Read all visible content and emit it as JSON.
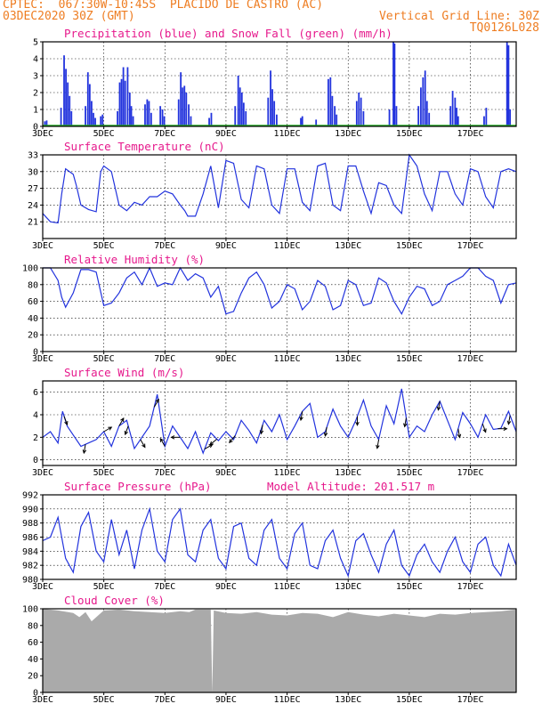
{
  "header": {
    "line1_left": "CPTEC:  067:30W-10:45S  PLACIDO DE CASTRO (AC)",
    "line2_left": "03DEC2020 30Z (GMT)",
    "line2_right": "Vertical Grid Line: 30Z",
    "line3_right": "TQ0126L028"
  },
  "colors": {
    "header": "#ee7d22",
    "panel_title": "#e6198c",
    "series": "#2233dd",
    "snow": "#22aa22",
    "cloud": "#aaaaaa"
  },
  "chart_data": [
    {
      "id": "precip",
      "type": "bar",
      "title": "Precipitation (blue) and Snow Fall (green) (mm/h)",
      "ylim": [
        0,
        5
      ],
      "yticks": [
        0,
        1,
        2,
        3,
        4,
        5
      ],
      "xlabels": [
        "3DEC",
        "5DEC",
        "7DEC",
        "9DEC",
        "11DEC",
        "13DEC",
        "15DEC",
        "17DEC"
      ],
      "xstart": 3.0,
      "xend": 18.5,
      "grid": true,
      "bars": [
        [
          3.07,
          0.3
        ],
        [
          3.13,
          0.35
        ],
        [
          3.6,
          1.1
        ],
        [
          3.7,
          4.2
        ],
        [
          3.76,
          3.4
        ],
        [
          3.82,
          2.6
        ],
        [
          3.88,
          1.8
        ],
        [
          3.94,
          0.9
        ],
        [
          4.4,
          1.2
        ],
        [
          4.48,
          3.2
        ],
        [
          4.54,
          2.5
        ],
        [
          4.6,
          1.5
        ],
        [
          4.66,
          0.8
        ],
        [
          4.72,
          0.5
        ],
        [
          4.9,
          0.6
        ],
        [
          4.96,
          0.7
        ],
        [
          5.45,
          0.9
        ],
        [
          5.52,
          2.6
        ],
        [
          5.58,
          2.8
        ],
        [
          5.64,
          3.5
        ],
        [
          5.7,
          2.7
        ],
        [
          5.78,
          3.5
        ],
        [
          5.85,
          2.0
        ],
        [
          5.9,
          1.2
        ],
        [
          5.96,
          0.6
        ],
        [
          6.35,
          1.3
        ],
        [
          6.42,
          1.6
        ],
        [
          6.48,
          1.5
        ],
        [
          6.55,
          0.8
        ],
        [
          6.85,
          1.2
        ],
        [
          6.92,
          1.0
        ],
        [
          6.98,
          0.6
        ],
        [
          7.45,
          1.6
        ],
        [
          7.52,
          3.2
        ],
        [
          7.58,
          2.3
        ],
        [
          7.64,
          2.4
        ],
        [
          7.7,
          2.0
        ],
        [
          7.78,
          1.3
        ],
        [
          7.85,
          0.6
        ],
        [
          8.45,
          0.5
        ],
        [
          8.52,
          0.8
        ],
        [
          9.3,
          1.2
        ],
        [
          9.4,
          3.0
        ],
        [
          9.46,
          2.3
        ],
        [
          9.52,
          2.0
        ],
        [
          9.58,
          1.4
        ],
        [
          9.65,
          0.9
        ],
        [
          10.38,
          1.7
        ],
        [
          10.46,
          3.3
        ],
        [
          10.52,
          2.2
        ],
        [
          10.58,
          1.5
        ],
        [
          10.66,
          0.7
        ],
        [
          11.45,
          0.5
        ],
        [
          11.5,
          0.6
        ],
        [
          11.95,
          0.4
        ],
        [
          12.35,
          2.8
        ],
        [
          12.42,
          2.9
        ],
        [
          12.48,
          1.8
        ],
        [
          12.56,
          1.2
        ],
        [
          12.62,
          0.7
        ],
        [
          13.28,
          1.5
        ],
        [
          13.35,
          2.0
        ],
        [
          13.42,
          1.7
        ],
        [
          13.5,
          0.9
        ],
        [
          14.35,
          1.0
        ],
        [
          14.48,
          5.0
        ],
        [
          14.52,
          4.9
        ],
        [
          14.58,
          1.2
        ],
        [
          15.3,
          1.2
        ],
        [
          15.38,
          2.3
        ],
        [
          15.45,
          2.9
        ],
        [
          15.52,
          3.3
        ],
        [
          15.58,
          1.5
        ],
        [
          15.65,
          0.8
        ],
        [
          16.35,
          1.2
        ],
        [
          16.42,
          2.1
        ],
        [
          16.5,
          1.7
        ],
        [
          16.55,
          1.1
        ],
        [
          16.6,
          0.6
        ],
        [
          17.45,
          0.6
        ],
        [
          17.52,
          1.1
        ],
        [
          18.2,
          5.0
        ],
        [
          18.25,
          4.8
        ],
        [
          18.3,
          1.0
        ]
      ]
    },
    {
      "id": "temp",
      "type": "line",
      "title": "Surface Temperature (nC)",
      "ylim": [
        18,
        33
      ],
      "yticks": [
        21,
        24,
        27,
        30,
        33
      ],
      "xlabels": [
        "3DEC",
        "5DEC",
        "7DEC",
        "9DEC",
        "11DEC",
        "13DEC",
        "15DEC",
        "17DEC"
      ],
      "xstart": 3.0,
      "xend": 18.5,
      "grid": true,
      "x": [
        3.0,
        3.25,
        3.5,
        3.62,
        3.75,
        4.0,
        4.1,
        4.25,
        4.5,
        4.75,
        4.9,
        5.0,
        5.25,
        5.5,
        5.75,
        6.0,
        6.25,
        6.5,
        6.75,
        7.0,
        7.25,
        7.5,
        7.65,
        7.75,
        8.0,
        8.25,
        8.5,
        8.75,
        9.0,
        9.25,
        9.5,
        9.75,
        10.0,
        10.25,
        10.5,
        10.75,
        11.0,
        11.25,
        11.5,
        11.75,
        12.0,
        12.25,
        12.5,
        12.75,
        13.0,
        13.25,
        13.5,
        13.75,
        14.0,
        14.25,
        14.5,
        14.75,
        15.0,
        15.25,
        15.5,
        15.75,
        16.0,
        16.25,
        16.5,
        16.75,
        17.0,
        17.25,
        17.5,
        17.75,
        18.0,
        18.25,
        18.5
      ],
      "y": [
        22.5,
        21.0,
        20.8,
        26.0,
        30.5,
        29.5,
        27.5,
        24.0,
        23.2,
        22.8,
        30.0,
        31.0,
        30.0,
        24.0,
        23.0,
        24.5,
        24.0,
        25.5,
        25.5,
        26.5,
        26.0,
        24.0,
        23.0,
        22.0,
        22.0,
        26.0,
        31.0,
        23.5,
        32.0,
        31.5,
        25.0,
        23.5,
        31.0,
        30.5,
        24.0,
        22.5,
        30.5,
        30.5,
        24.5,
        23.0,
        31.0,
        31.5,
        24.0,
        23.0,
        31.0,
        31.0,
        26.5,
        22.5,
        28.0,
        27.5,
        24.0,
        22.5,
        33.0,
        31.0,
        26.0,
        23.0,
        30.0,
        30.0,
        26.0,
        24.0,
        30.5,
        30.0,
        25.5,
        23.5,
        30.0,
        30.5,
        30.0
      ]
    },
    {
      "id": "rh",
      "type": "line",
      "title": "Relative Humidity (%)",
      "ylim": [
        0,
        100
      ],
      "yticks": [
        0,
        20,
        40,
        60,
        80,
        100
      ],
      "xlabels": [
        "3DEC",
        "5DEC",
        "7DEC",
        "9DEC",
        "11DEC",
        "13DEC",
        "15DEC",
        "17DEC"
      ],
      "xstart": 3.0,
      "xend": 18.5,
      "grid": true,
      "x": [
        3.0,
        3.25,
        3.5,
        3.62,
        3.75,
        4.0,
        4.25,
        4.5,
        4.75,
        5.0,
        5.25,
        5.5,
        5.75,
        6.0,
        6.25,
        6.5,
        6.75,
        7.0,
        7.25,
        7.5,
        7.75,
        8.0,
        8.25,
        8.5,
        8.75,
        9.0,
        9.25,
        9.5,
        9.75,
        10.0,
        10.25,
        10.5,
        10.75,
        11.0,
        11.25,
        11.5,
        11.75,
        12.0,
        12.25,
        12.5,
        12.75,
        13.0,
        13.25,
        13.5,
        13.75,
        14.0,
        14.25,
        14.5,
        14.75,
        15.0,
        15.25,
        15.5,
        15.75,
        16.0,
        16.25,
        16.5,
        16.75,
        17.0,
        17.25,
        17.5,
        17.75,
        18.0,
        18.25,
        18.5
      ],
      "y": [
        100,
        100,
        85,
        65,
        53,
        70,
        98,
        98,
        95,
        55,
        58,
        70,
        88,
        95,
        80,
        100,
        78,
        82,
        80,
        100,
        85,
        93,
        88,
        65,
        78,
        45,
        48,
        70,
        88,
        95,
        80,
        52,
        60,
        80,
        75,
        50,
        60,
        85,
        78,
        50,
        55,
        85,
        80,
        55,
        58,
        88,
        82,
        60,
        45,
        65,
        78,
        75,
        55,
        60,
        80,
        85,
        90,
        100,
        100,
        90,
        85,
        58,
        80,
        82
      ]
    },
    {
      "id": "wind",
      "type": "line",
      "title": "Surface Wind (m/s)",
      "ylim": [
        -0.5,
        7
      ],
      "yticks": [
        0,
        2,
        4,
        6
      ],
      "xlabels": [
        "3DEC",
        "5DEC",
        "7DEC",
        "9DEC",
        "11DEC",
        "13DEC",
        "15DEC",
        "17DEC"
      ],
      "xstart": 3.0,
      "xend": 18.5,
      "grid": true,
      "x": [
        3.0,
        3.25,
        3.5,
        3.65,
        3.8,
        4.0,
        4.25,
        4.5,
        4.75,
        5.0,
        5.25,
        5.5,
        5.75,
        6.0,
        6.25,
        6.5,
        6.75,
        7.0,
        7.25,
        7.5,
        7.75,
        8.0,
        8.25,
        8.5,
        8.75,
        9.0,
        9.25,
        9.5,
        9.75,
        10.0,
        10.25,
        10.5,
        10.75,
        11.0,
        11.25,
        11.5,
        11.75,
        12.0,
        12.25,
        12.5,
        12.75,
        13.0,
        13.25,
        13.5,
        13.75,
        14.0,
        14.25,
        14.5,
        14.75,
        15.0,
        15.25,
        15.5,
        15.75,
        16.0,
        16.25,
        16.5,
        16.75,
        17.0,
        17.25,
        17.5,
        17.75,
        18.0,
        18.25,
        18.5
      ],
      "y": [
        2.0,
        2.5,
        1.5,
        4.3,
        3.0,
        2.2,
        1.2,
        1.5,
        1.8,
        2.5,
        1.2,
        3.0,
        3.5,
        1.0,
        2.0,
        3.0,
        5.8,
        1.2,
        3.0,
        2.0,
        1.0,
        2.5,
        0.6,
        2.4,
        1.7,
        2.5,
        1.8,
        3.5,
        2.6,
        1.5,
        3.5,
        2.5,
        4.0,
        1.8,
        3.0,
        4.3,
        5.0,
        2.0,
        2.5,
        4.5,
        3.0,
        2.0,
        3.5,
        5.3,
        3.0,
        1.8,
        4.8,
        3.2,
        6.3,
        2.0,
        3.0,
        2.5,
        4.0,
        5.2,
        3.5,
        1.8,
        4.2,
        3.2,
        2.0,
        4.0,
        2.7,
        2.8,
        4.3,
        2.5
      ],
      "arrows": [
        [
          3.7,
          -70
        ],
        [
          4.4,
          -100
        ],
        [
          5.0,
          30
        ],
        [
          5.5,
          60
        ],
        [
          5.8,
          -110
        ],
        [
          6.2,
          -60
        ],
        [
          6.65,
          60
        ],
        [
          7.0,
          120
        ],
        [
          7.5,
          180
        ],
        [
          8.3,
          30
        ],
        [
          8.7,
          -140
        ],
        [
          9.3,
          -130
        ],
        [
          10.2,
          -100
        ],
        [
          11.5,
          -100
        ],
        [
          12.3,
          -100
        ],
        [
          13.3,
          -90
        ],
        [
          14.0,
          -100
        ],
        [
          14.9,
          -100
        ],
        [
          16.0,
          -100
        ],
        [
          16.6,
          -80
        ],
        [
          17.4,
          -70
        ],
        [
          17.9,
          0
        ],
        [
          18.3,
          -100
        ]
      ]
    },
    {
      "id": "pressure",
      "type": "line",
      "title": "Surface Pressure (hPa)",
      "subtitle": "Model Altitude: 201.517 m",
      "ylim": [
        980,
        992
      ],
      "yticks": [
        980,
        982,
        984,
        986,
        988,
        990,
        992
      ],
      "xlabels": [
        "3DEC",
        "5DEC",
        "7DEC",
        "9DEC",
        "11DEC",
        "13DEC",
        "15DEC",
        "17DEC"
      ],
      "xstart": 3.0,
      "xend": 18.5,
      "grid": true,
      "x": [
        3.0,
        3.25,
        3.5,
        3.75,
        4.0,
        4.25,
        4.5,
        4.75,
        5.0,
        5.25,
        5.5,
        5.75,
        6.0,
        6.25,
        6.5,
        6.75,
        7.0,
        7.25,
        7.5,
        7.75,
        8.0,
        8.25,
        8.5,
        8.75,
        9.0,
        9.25,
        9.5,
        9.75,
        10.0,
        10.25,
        10.5,
        10.75,
        11.0,
        11.25,
        11.5,
        11.75,
        12.0,
        12.25,
        12.5,
        12.75,
        13.0,
        13.25,
        13.5,
        13.75,
        14.0,
        14.25,
        14.5,
        14.75,
        15.0,
        15.25,
        15.5,
        15.75,
        16.0,
        16.25,
        16.5,
        16.75,
        17.0,
        17.25,
        17.5,
        17.75,
        18.0,
        18.25,
        18.5
      ],
      "y": [
        985.5,
        986.0,
        988.8,
        983.0,
        981.0,
        987.5,
        989.5,
        984.0,
        982.5,
        988.5,
        983.5,
        987.0,
        981.5,
        987.0,
        990.0,
        984.0,
        982.5,
        988.5,
        990.0,
        983.5,
        982.5,
        987.0,
        988.5,
        983.0,
        981.5,
        987.5,
        988.0,
        983.0,
        982.0,
        987.0,
        988.5,
        983.0,
        981.5,
        986.5,
        988.0,
        982.0,
        981.5,
        985.5,
        987.0,
        983.0,
        980.5,
        985.5,
        986.5,
        983.5,
        981.0,
        985.0,
        987.0,
        982.0,
        980.5,
        983.5,
        985.0,
        982.5,
        981.0,
        984.0,
        986.0,
        982.5,
        981.0,
        985.0,
        986.0,
        982.0,
        980.5,
        985.0,
        982.0
      ]
    },
    {
      "id": "cloud",
      "type": "area",
      "title": "Cloud Cover (%)",
      "ylim": [
        0,
        100
      ],
      "yticks": [
        0,
        20,
        40,
        60,
        80,
        100
      ],
      "xlabels": [
        "3DEC",
        "5DEC",
        "7DEC",
        "9DEC",
        "11DEC",
        "13DEC",
        "15DEC",
        "17DEC"
      ],
      "xstart": 3.0,
      "xend": 18.5,
      "grid": true,
      "x": [
        3.0,
        3.5,
        4.0,
        4.2,
        4.4,
        4.6,
        5.0,
        5.5,
        6.0,
        6.5,
        7.0,
        7.5,
        7.8,
        8.0,
        8.5,
        8.55,
        8.6,
        9.0,
        9.5,
        10.0,
        10.5,
        11.0,
        11.5,
        12.0,
        12.5,
        13.0,
        13.5,
        14.0,
        14.5,
        15.0,
        15.5,
        16.0,
        16.5,
        17.0,
        17.5,
        18.0,
        18.5
      ],
      "y": [
        100,
        98,
        95,
        90,
        96,
        85,
        98,
        99,
        97,
        96,
        95,
        97,
        96,
        99,
        99,
        0,
        98,
        95,
        94,
        96,
        93,
        92,
        95,
        94,
        90,
        96,
        93,
        91,
        94,
        92,
        90,
        94,
        93,
        95,
        96,
        97,
        99
      ]
    }
  ]
}
